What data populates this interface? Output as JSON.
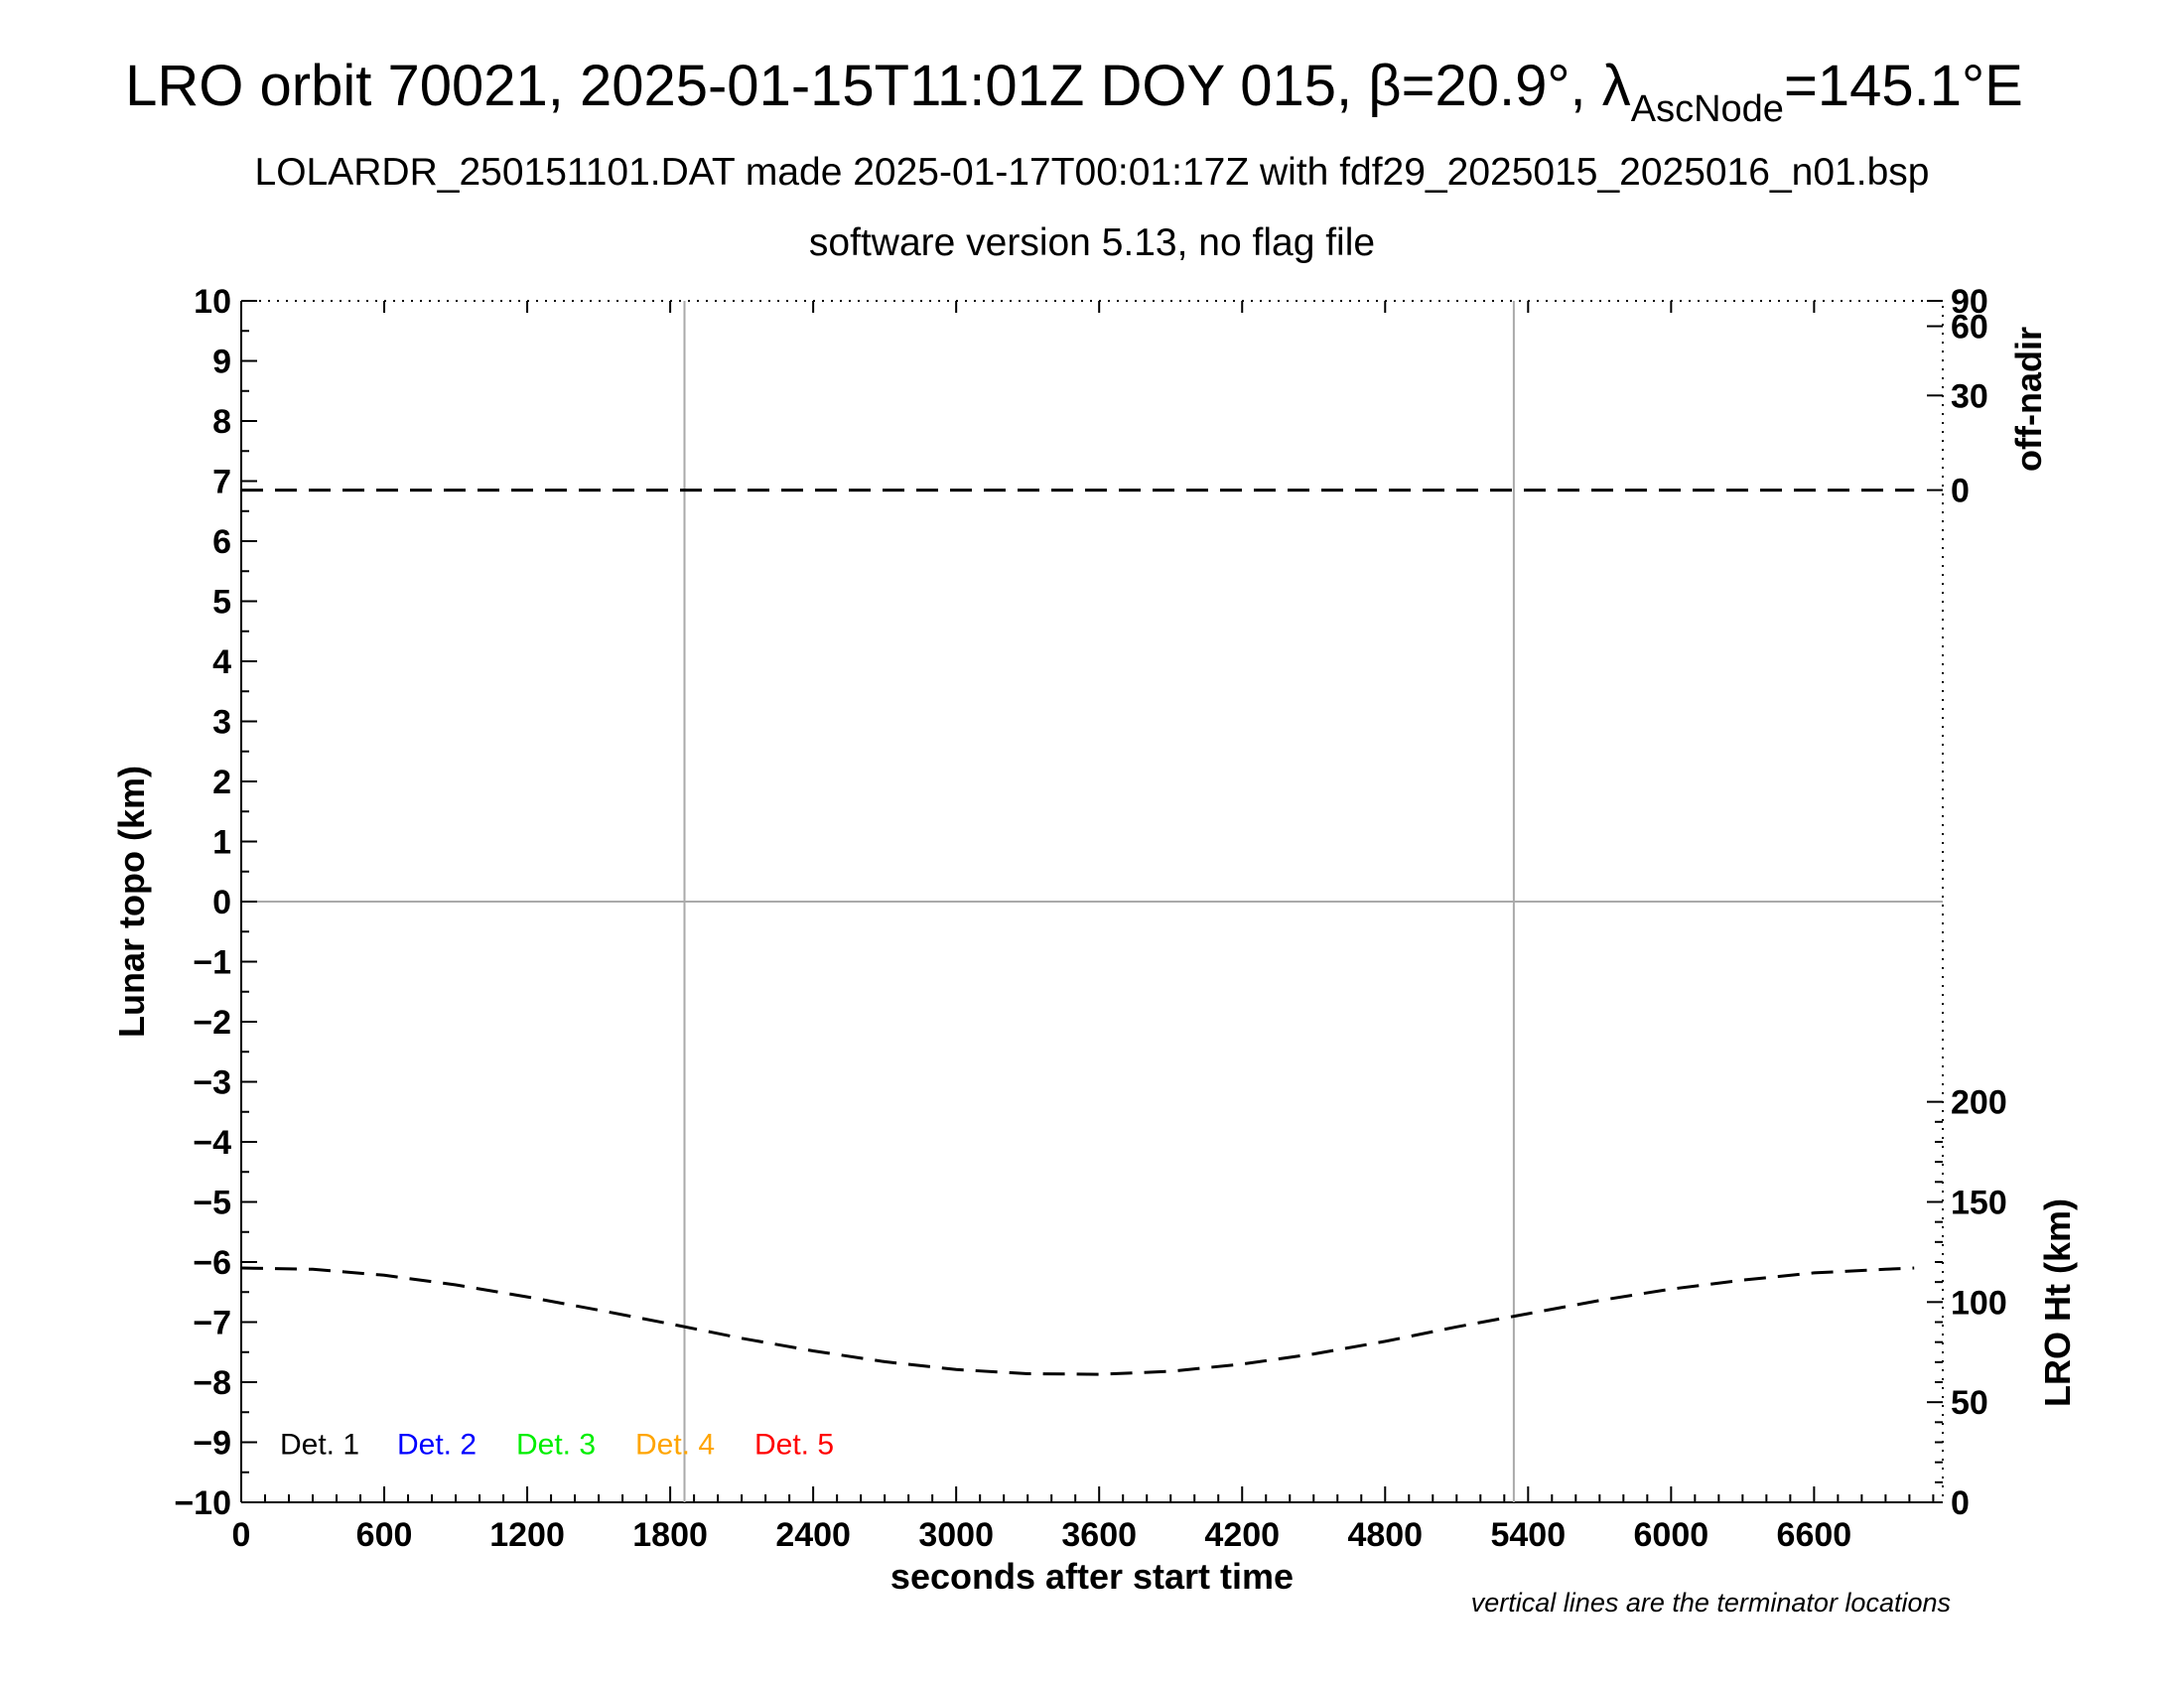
{
  "header": {
    "title_main": "LRO orbit 70021, 2025-01-15T11:01Z DOY 015, β=20.9°, λ",
    "title_sub": "AscNode",
    "title_end": "=145.1°E",
    "subtitle1": "LOLARDR_250151101.DAT made 2025-01-17T00:01:17Z with fdf29_2025015_2025016_n01.bsp",
    "subtitle2": "software version 5.13, no flag file"
  },
  "footnote": "vertical lines are the terminator locations",
  "chart_data": {
    "type": "line",
    "xlabel": "seconds after start time",
    "xlim": [
      0,
      7140
    ],
    "x_ticks": [
      0,
      600,
      1200,
      1800,
      2400,
      3000,
      3600,
      4200,
      4800,
      5400,
      6000,
      6600
    ],
    "x_tick_labels": [
      "0",
      "600",
      "1200",
      "1800",
      "2400",
      "3000",
      "3600",
      "4200",
      "4800",
      "5400",
      "6000",
      "6600"
    ],
    "ylabel": "Lunar topo (km)",
    "ylim": [
      -10,
      10
    ],
    "y_ticks": [
      10,
      9,
      8,
      7,
      6,
      5,
      4,
      3,
      2,
      1,
      0,
      -1,
      -2,
      -3,
      -4,
      -5,
      -6,
      -7,
      -8,
      -9,
      -10
    ],
    "y_tick_labels": [
      "10",
      "9",
      "8",
      "7",
      "6",
      "5",
      "4",
      "3",
      "2",
      "1",
      "0",
      "−1",
      "−2",
      "−3",
      "−4",
      "−5",
      "−6",
      "−7",
      "−8",
      "−9",
      "−10"
    ],
    "y2_upper": {
      "label": "off-nadir",
      "ticks": [
        90,
        60,
        30,
        0
      ],
      "tick_labels": [
        "90",
        "60",
        "30",
        "0"
      ]
    },
    "y2_lower": {
      "label": "LRO Ht (km)",
      "ticks": [
        200,
        150,
        100,
        50,
        0
      ],
      "tick_labels": [
        "200",
        "150",
        "100",
        "50",
        "0"
      ],
      "range": [
        0,
        200
      ]
    },
    "terminators": [
      1860,
      5340
    ],
    "legend": [
      {
        "label": "Det. 1",
        "color": "#000000"
      },
      {
        "label": "Det. 2",
        "color": "#0000ff"
      },
      {
        "label": "Det. 3",
        "color": "#00ee00"
      },
      {
        "label": "Det. 4",
        "color": "#ffa500"
      },
      {
        "label": "Det. 5",
        "color": "#ff0000"
      }
    ],
    "series": [
      {
        "style": "dashed",
        "x": [
          0,
          7020
        ],
        "y": [
          6.85,
          6.85
        ]
      },
      {
        "style": "dashed",
        "x": [
          0,
          300,
          600,
          900,
          1200,
          1500,
          1800,
          2100,
          2400,
          2700,
          3000,
          3300,
          3600,
          3900,
          4200,
          4500,
          4800,
          5100,
          5400,
          5700,
          6000,
          6300,
          6600,
          6900,
          7020
        ],
        "y": [
          -6.1,
          -6.12,
          -6.22,
          -6.38,
          -6.58,
          -6.8,
          -7.03,
          -7.27,
          -7.48,
          -7.66,
          -7.79,
          -7.86,
          -7.87,
          -7.82,
          -7.7,
          -7.53,
          -7.32,
          -7.08,
          -6.86,
          -6.64,
          -6.45,
          -6.3,
          -6.18,
          -6.12,
          -6.1
        ]
      }
    ]
  }
}
